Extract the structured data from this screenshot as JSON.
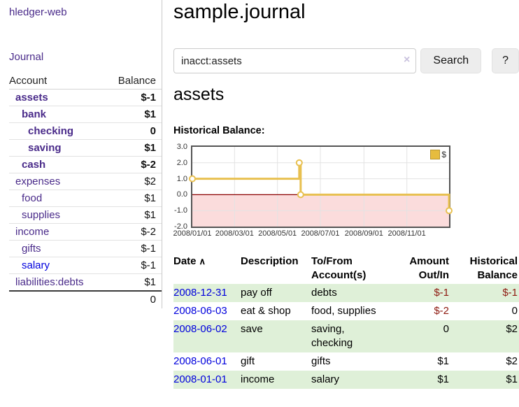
{
  "app": {
    "title": "hledger-web",
    "nav_journal": "Journal"
  },
  "sidebar": {
    "header": {
      "account": "Account",
      "balance": "Balance"
    },
    "accounts": [
      {
        "name": "assets",
        "balance": "$-1"
      },
      {
        "name": "bank",
        "balance": "$1"
      },
      {
        "name": "checking",
        "balance": "0"
      },
      {
        "name": "saving",
        "balance": "$1"
      },
      {
        "name": "cash",
        "balance": "$-2"
      },
      {
        "name": "expenses",
        "balance": "$2"
      },
      {
        "name": "food",
        "balance": "$1"
      },
      {
        "name": "supplies",
        "balance": "$1"
      },
      {
        "name": "income",
        "balance": "$-2"
      },
      {
        "name": "gifts",
        "balance": "$-1"
      },
      {
        "name": "salary",
        "balance": "$-1"
      },
      {
        "name": "liabilities:debts",
        "balance": "$1"
      }
    ],
    "total": "0"
  },
  "header": {
    "title": "sample.journal"
  },
  "search": {
    "value": "inacct:assets",
    "clear_icon": "×",
    "button": "Search",
    "help_button": "?"
  },
  "account_page": {
    "title": "assets",
    "chart_label": "Historical Balance:"
  },
  "chart_data": {
    "type": "line",
    "title": "Historical Balance",
    "step": true,
    "series": [
      {
        "name": "$",
        "x": [
          "2008-01-01",
          "2008-06-01",
          "2008-06-03",
          "2008-12-31"
        ],
        "y": [
          1,
          2,
          0,
          -1
        ]
      }
    ],
    "x_ticks": [
      "2008/01/01",
      "2008/03/01",
      "2008/05/01",
      "2008/07/01",
      "2008/09/01",
      "2008/11/01"
    ],
    "y_ticks": [
      3.0,
      2.0,
      1.0,
      0.0,
      -1.0,
      -2.0
    ],
    "xlim": [
      "2008-01-01",
      "2008-12-31"
    ],
    "ylim": [
      -2,
      3
    ],
    "grid": true,
    "legend": "$",
    "legend_position": "top-right",
    "line_color": "#e8c050",
    "marker": "open-circle",
    "negative_region_color": "#fbdcdc",
    "zero_line_color": "#8b0000"
  },
  "register": {
    "headers": {
      "date": "Date",
      "description": "Description",
      "to_from": "To/From\nAccount(s)",
      "amount": "Amount\nOut/In",
      "historical": "Historical\nBalance"
    },
    "sort_icon": "∧",
    "rows": [
      {
        "date": "2008-12-31",
        "description": "pay off",
        "to_from": "debts",
        "amount": "$-1",
        "historical": "$-1"
      },
      {
        "date": "2008-06-03",
        "description": "eat & shop",
        "to_from": "food, supplies",
        "amount": "$-2",
        "historical": "0"
      },
      {
        "date": "2008-06-02",
        "description": "save",
        "to_from": "saving,\nchecking",
        "amount": "0",
        "historical": "$2"
      },
      {
        "date": "2008-06-01",
        "description": "gift",
        "to_from": "gifts",
        "amount": "$1",
        "historical": "$2"
      },
      {
        "date": "2008-01-01",
        "description": "income",
        "to_from": "salary",
        "amount": "$1",
        "historical": "$1"
      }
    ]
  }
}
